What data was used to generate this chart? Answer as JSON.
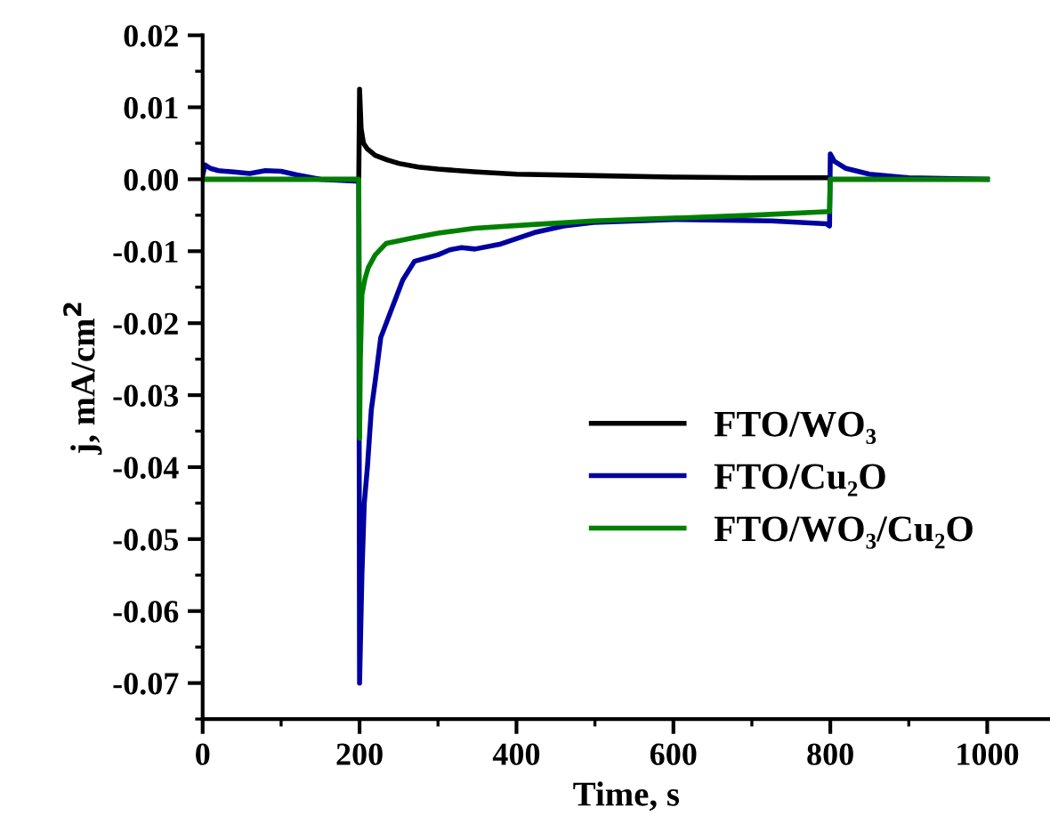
{
  "chart_data": {
    "type": "line",
    "xlabel": "Time, s",
    "ylabel": "j, mA/cm$^{2}$",
    "series": [
      {
        "name": "FTO/WO₃",
        "color": "#000000",
        "x": [
          0,
          100,
          199,
          200,
          202,
          205,
          210,
          220,
          235,
          250,
          275,
          300,
          350,
          400,
          500,
          600,
          700,
          799,
          800,
          900,
          1000
        ],
        "values": [
          0,
          0,
          0,
          0.0125,
          0.007,
          0.005,
          0.0042,
          0.0033,
          0.0027,
          0.0022,
          0.0017,
          0.0014,
          0.001,
          0.0007,
          0.0005,
          0.0003,
          0.0002,
          0.0002,
          0,
          0,
          0
        ]
      },
      {
        "name": "FTO/Cu₂O",
        "color": "#0000a0",
        "x": [
          0,
          3,
          10,
          20,
          40,
          60,
          80,
          100,
          120,
          150,
          199,
          200,
          203,
          206,
          210,
          215,
          220,
          227,
          241,
          255,
          270,
          300,
          315,
          330,
          347,
          380,
          423,
          460,
          498,
          600,
          725,
          795,
          799,
          800,
          805,
          820,
          850,
          900,
          1000
        ],
        "values": [
          0.0005,
          0.002,
          0.0015,
          0.0012,
          0.001,
          0.0008,
          0.0012,
          0.0011,
          0.0006,
          0,
          -0.0003,
          -0.07,
          -0.055,
          -0.045,
          -0.04,
          -0.032,
          -0.028,
          -0.022,
          -0.018,
          -0.014,
          -0.0114,
          -0.0105,
          -0.0098,
          -0.0095,
          -0.0097,
          -0.009,
          -0.0074,
          -0.0065,
          -0.006,
          -0.0056,
          -0.0058,
          -0.0062,
          -0.0065,
          0.0035,
          0.0025,
          0.0015,
          0.0007,
          0.0002,
          0
        ]
      },
      {
        "name": "FTO/WO₃/Cu₂O",
        "color": "#008000",
        "x": [
          0,
          199,
          200,
          201,
          203,
          207,
          211,
          220,
          234,
          270,
          300,
          347,
          420,
          498,
          600,
          700,
          799,
          800,
          900,
          1000
        ],
        "values": [
          0,
          0,
          -0.036,
          -0.025,
          -0.016,
          -0.0138,
          -0.0123,
          -0.0105,
          -0.0089,
          -0.0081,
          -0.0075,
          -0.0068,
          -0.0063,
          -0.0058,
          -0.0054,
          -0.005,
          -0.0045,
          0,
          0,
          0
        ]
      }
    ],
    "xlim": [
      0,
      1080
    ],
    "xticks": [
      0,
      200,
      400,
      600,
      800,
      1000
    ],
    "ylim": [
      -0.075,
      0.02
    ],
    "yticks": [
      {
        "value": 0.02,
        "label": "0.02"
      },
      {
        "value": 0.01,
        "label": "0.01"
      },
      {
        "value": 0,
        "label": "0.00"
      },
      {
        "value": -0.01,
        "label": "-0.01"
      },
      {
        "value": -0.02,
        "label": "-0.02"
      },
      {
        "value": -0.03,
        "label": "-0.03"
      },
      {
        "value": -0.04,
        "label": "-0.04"
      },
      {
        "value": -0.05,
        "label": "-0.05"
      },
      {
        "value": -0.06,
        "label": "-0.06"
      },
      {
        "value": -0.07,
        "label": "-0.07"
      }
    ],
    "grid": false,
    "legend": "bottom right",
    "marker": "none",
    "line_style": "solid"
  }
}
